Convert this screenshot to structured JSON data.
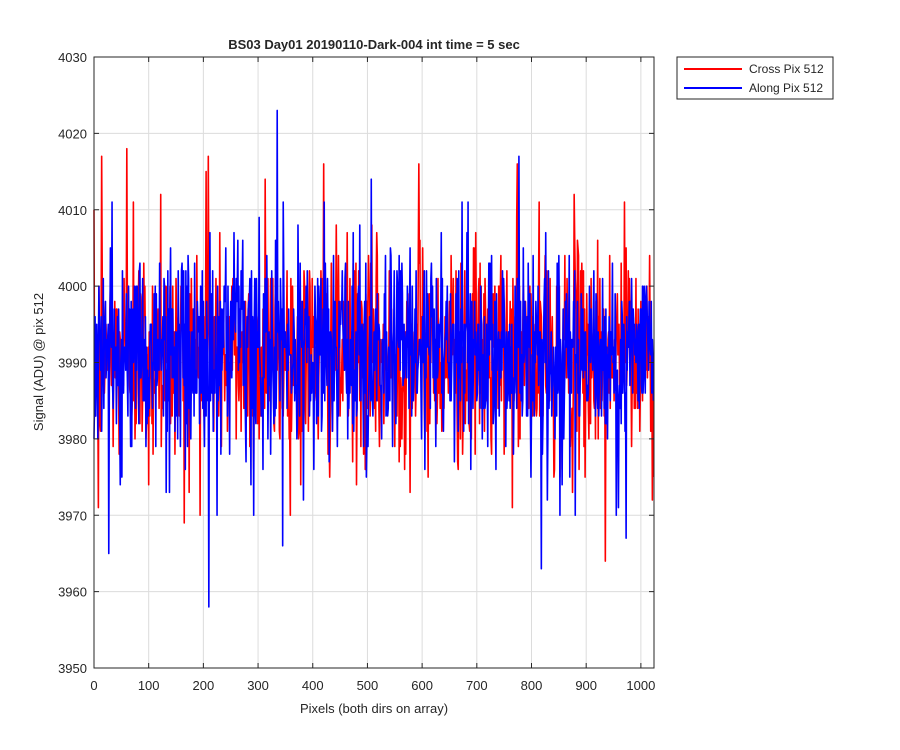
{
  "chart_data": {
    "type": "line",
    "title": "BS03 Day01 20190110-Dark-004 int time = 5 sec",
    "xlabel": "Pixels (both dirs on array)",
    "ylabel": "Signal (ADU) @ pix 512",
    "xlim": [
      0,
      1024
    ],
    "ylim": [
      3950,
      4030
    ],
    "xticks": [
      0,
      100,
      200,
      300,
      400,
      500,
      600,
      700,
      800,
      900,
      1000
    ],
    "yticks": [
      3950,
      3960,
      3970,
      3980,
      3990,
      4000,
      4010,
      4020,
      4030
    ],
    "grid": true,
    "legend_position": "outside-top-right",
    "n_points": 1024,
    "series": [
      {
        "name": "Cross Pix 512",
        "color": "#ff0000",
        "mean": 3991,
        "noise_sd": 7,
        "spikes": [
          {
            "x": 8,
            "y": 3971
          },
          {
            "x": 14,
            "y": 4017
          },
          {
            "x": 60,
            "y": 4018
          },
          {
            "x": 72,
            "y": 4011
          },
          {
            "x": 100,
            "y": 3974
          },
          {
            "x": 122,
            "y": 4012
          },
          {
            "x": 165,
            "y": 3969
          },
          {
            "x": 205,
            "y": 4015
          },
          {
            "x": 209,
            "y": 4017
          },
          {
            "x": 313,
            "y": 4014
          },
          {
            "x": 420,
            "y": 4016
          },
          {
            "x": 594,
            "y": 4016
          },
          {
            "x": 774,
            "y": 4016
          },
          {
            "x": 878,
            "y": 4012
          },
          {
            "x": 935,
            "y": 3964
          },
          {
            "x": 970,
            "y": 4011
          },
          {
            "x": 1023,
            "y": 3975
          }
        ]
      },
      {
        "name": "Along Pix 512",
        "color": "#0000ff",
        "mean": 3991,
        "noise_sd": 7,
        "spikes": [
          {
            "x": 27,
            "y": 3965
          },
          {
            "x": 210,
            "y": 3958
          },
          {
            "x": 335,
            "y": 4023
          },
          {
            "x": 345,
            "y": 3966
          },
          {
            "x": 371,
            "y": 3980
          },
          {
            "x": 507,
            "y": 4014
          },
          {
            "x": 777,
            "y": 4017
          },
          {
            "x": 818,
            "y": 3963
          },
          {
            "x": 852,
            "y": 3970
          },
          {
            "x": 880,
            "y": 3970
          },
          {
            "x": 955,
            "y": 3970
          },
          {
            "x": 973,
            "y": 3967
          }
        ]
      }
    ]
  }
}
